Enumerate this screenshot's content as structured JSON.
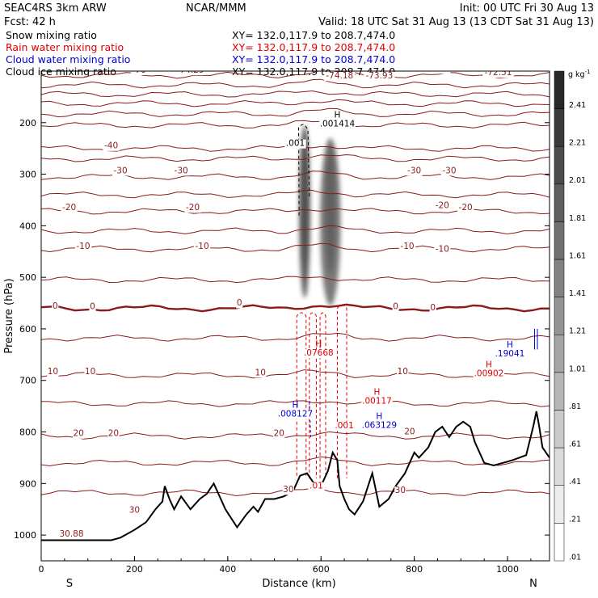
{
  "header": {
    "model": "SEAC4RS  3km ARW",
    "org": "NCAR/MMM",
    "init": "Init: 00 UTC Fri 30 Aug 13",
    "fcst": "Fcst:   42 h",
    "valid": "Valid: 18 UTC Sat 31 Aug 13 (13 CDT Sat 31 Aug 13)"
  },
  "fields": [
    {
      "name": "Snow mixing ratio",
      "xy": "XY= 132.0,117.9 to 208.7,474.0",
      "color": "#000000"
    },
    {
      "name": "Rain water mixing ratio",
      "xy": "XY= 132.0,117.9 to 208.7,474.0",
      "color": "#e00000"
    },
    {
      "name": "Cloud water mixing ratio",
      "xy": "XY= 132.0,117.9 to 208.7,474.0",
      "color": "#0000d0"
    },
    {
      "name": "Cloud ice mixing ratio",
      "xy": "XY= 132.0,117.9 to 208.7,474.0",
      "color": "#000000"
    }
  ],
  "colors": {
    "temperature": "#8b1a1a",
    "rain": "#e00000",
    "cloud_water": "#0000d0",
    "terrain": "#000000"
  },
  "chart_data": {
    "type": "contour",
    "xlabel": "Distance (km)",
    "ylabel": "Pressure (hPa)",
    "xlim": [
      0,
      1090
    ],
    "ylim": [
      1050,
      100
    ],
    "x_ticks": [
      0,
      200,
      400,
      600,
      800,
      1000
    ],
    "y_ticks": [
      200,
      300,
      400,
      500,
      600,
      700,
      800,
      900,
      1000
    ],
    "x_end_labels": {
      "left": "S",
      "right": "N"
    },
    "colorbar": {
      "unit": "g kg",
      "unit_exp": "-1",
      "ticks": [
        "2.41",
        "2.21",
        "2.01",
        "1.81",
        "1.61",
        "1.41",
        "1.21",
        "1.01",
        ".81",
        ".61",
        ".41",
        ".21",
        ".01"
      ]
    },
    "temperature_contours": [
      {
        "value": -70,
        "p": 108
      },
      {
        "value": -65,
        "p": 127
      },
      {
        "value": -60,
        "p": 145
      },
      {
        "value": -55,
        "p": 163
      },
      {
        "value": -50,
        "p": 183
      },
      {
        "value": -45,
        "p": 205
      },
      {
        "value": -40,
        "p": 250
      },
      {
        "value": -35,
        "p": 270
      },
      {
        "value": -30,
        "p": 305
      },
      {
        "value": -25,
        "p": 340
      },
      {
        "value": -20,
        "p": 372
      },
      {
        "value": -15,
        "p": 410
      },
      {
        "value": -10,
        "p": 445
      },
      {
        "value": -5,
        "p": 505
      },
      {
        "value": 0,
        "p": 560
      },
      {
        "value": 5,
        "p": 618
      },
      {
        "value": 10,
        "p": 690
      },
      {
        "value": 15,
        "p": 745
      },
      {
        "value": 20,
        "p": 808
      },
      {
        "value": 25,
        "p": 860
      },
      {
        "value": 30,
        "p": 918
      }
    ],
    "labels_temperature": [
      {
        "text": "-70",
        "x": 210,
        "p": 103
      },
      {
        "text": "-70",
        "x": 860,
        "p": 100
      },
      {
        "text": "-40",
        "x": 150,
        "p": 250
      },
      {
        "text": "-30",
        "x": 170,
        "p": 298
      },
      {
        "text": "-30",
        "x": 300,
        "p": 298
      },
      {
        "text": "-30",
        "x": 800,
        "p": 298
      },
      {
        "text": "-30",
        "x": 875,
        "p": 298
      },
      {
        "text": "-20",
        "x": 60,
        "p": 370
      },
      {
        "text": "-20",
        "x": 325,
        "p": 370
      },
      {
        "text": "-20",
        "x": 860,
        "p": 366
      },
      {
        "text": "-20",
        "x": 910,
        "p": 370
      },
      {
        "text": "-10",
        "x": 90,
        "p": 445
      },
      {
        "text": "-10",
        "x": 345,
        "p": 445
      },
      {
        "text": "-10",
        "x": 785,
        "p": 445
      },
      {
        "text": "-10",
        "x": 860,
        "p": 450
      },
      {
        "text": "0",
        "x": 30,
        "p": 561
      },
      {
        "text": "0",
        "x": 110,
        "p": 562
      },
      {
        "text": "0",
        "x": 425,
        "p": 555
      },
      {
        "text": "0",
        "x": 760,
        "p": 562
      },
      {
        "text": "0",
        "x": 840,
        "p": 564
      },
      {
        "text": "10",
        "x": 25,
        "p": 688
      },
      {
        "text": "10",
        "x": 105,
        "p": 688
      },
      {
        "text": "10",
        "x": 470,
        "p": 690
      },
      {
        "text": "10",
        "x": 775,
        "p": 688
      },
      {
        "text": "20",
        "x": 80,
        "p": 808
      },
      {
        "text": "20",
        "x": 155,
        "p": 808
      },
      {
        "text": "20",
        "x": 510,
        "p": 808
      },
      {
        "text": "20",
        "x": 790,
        "p": 805
      },
      {
        "text": "30",
        "x": 200,
        "p": 957
      },
      {
        "text": "30",
        "x": 530,
        "p": 917
      },
      {
        "text": "30",
        "x": 770,
        "p": 918
      }
    ],
    "labels_extrema": [
      {
        "text": "-74.29",
        "x": 320,
        "p": 103
      },
      {
        "text": "-74.18",
        "x": 640,
        "p": 114
      },
      {
        "text": "-73.93",
        "x": 725,
        "p": 114
      },
      {
        "text": "-72.51",
        "x": 980,
        "p": 108
      },
      {
        "text": "30.88",
        "x": 65,
        "p": 1003
      }
    ],
    "labels_hydrometeor": [
      {
        "text": ".001414",
        "x": 635,
        "p": 207,
        "series": "snow",
        "marker": "H"
      },
      {
        "text": ".001",
        "x": 545,
        "p": 245,
        "series": "snow"
      },
      {
        "text": ".07668",
        "x": 595,
        "p": 652,
        "series": "rain",
        "marker": "H"
      },
      {
        "text": ".00117",
        "x": 720,
        "p": 745,
        "series": "rain",
        "marker": "H"
      },
      {
        "text": ".001",
        "x": 650,
        "p": 793,
        "series": "rain"
      },
      {
        "text": ".00902",
        "x": 960,
        "p": 692,
        "series": "rain",
        "marker": "H"
      },
      {
        "text": ".008127",
        "x": 545,
        "p": 770,
        "series": "cloud_water",
        "marker": "H"
      },
      {
        "text": ".063129",
        "x": 725,
        "p": 792,
        "series": "cloud_water",
        "marker": "H"
      },
      {
        "text": ".19041",
        "x": 1005,
        "p": 653,
        "series": "cloud_water",
        "marker": "H"
      },
      {
        "text": ".01",
        "x": 590,
        "p": 910,
        "series": "rain"
      }
    ],
    "terrain": [
      [
        0,
        1010
      ],
      [
        150,
        1010
      ],
      [
        170,
        1005
      ],
      [
        200,
        990
      ],
      [
        225,
        975
      ],
      [
        245,
        950
      ],
      [
        260,
        935
      ],
      [
        265,
        905
      ],
      [
        275,
        930
      ],
      [
        285,
        950
      ],
      [
        300,
        925
      ],
      [
        320,
        950
      ],
      [
        340,
        930
      ],
      [
        355,
        920
      ],
      [
        370,
        900
      ],
      [
        380,
        920
      ],
      [
        395,
        950
      ],
      [
        420,
        985
      ],
      [
        440,
        960
      ],
      [
        455,
        945
      ],
      [
        465,
        955
      ],
      [
        480,
        930
      ],
      [
        500,
        930
      ],
      [
        520,
        925
      ],
      [
        540,
        915
      ],
      [
        555,
        885
      ],
      [
        570,
        880
      ],
      [
        585,
        900
      ],
      [
        600,
        905
      ],
      [
        615,
        875
      ],
      [
        625,
        840
      ],
      [
        635,
        855
      ],
      [
        640,
        905
      ],
      [
        650,
        930
      ],
      [
        660,
        950
      ],
      [
        672,
        960
      ],
      [
        690,
        935
      ],
      [
        710,
        880
      ],
      [
        725,
        945
      ],
      [
        745,
        930
      ],
      [
        760,
        905
      ],
      [
        780,
        880
      ],
      [
        800,
        840
      ],
      [
        810,
        850
      ],
      [
        830,
        830
      ],
      [
        845,
        800
      ],
      [
        860,
        790
      ],
      [
        875,
        810
      ],
      [
        890,
        790
      ],
      [
        905,
        780
      ],
      [
        920,
        790
      ],
      [
        930,
        820
      ],
      [
        950,
        860
      ],
      [
        970,
        865
      ],
      [
        990,
        860
      ],
      [
        1010,
        855
      ],
      [
        1040,
        845
      ],
      [
        1055,
        790
      ],
      [
        1062,
        760
      ],
      [
        1068,
        790
      ],
      [
        1075,
        830
      ],
      [
        1090,
        850
      ]
    ],
    "snow_columns": [
      {
        "x_center": 565,
        "width": 24,
        "p_top": 205,
        "p_bottom": 540,
        "max": 2.41
      },
      {
        "x_center": 620,
        "width": 44,
        "p_top": 230,
        "p_bottom": 555,
        "max": 1.81
      }
    ]
  }
}
